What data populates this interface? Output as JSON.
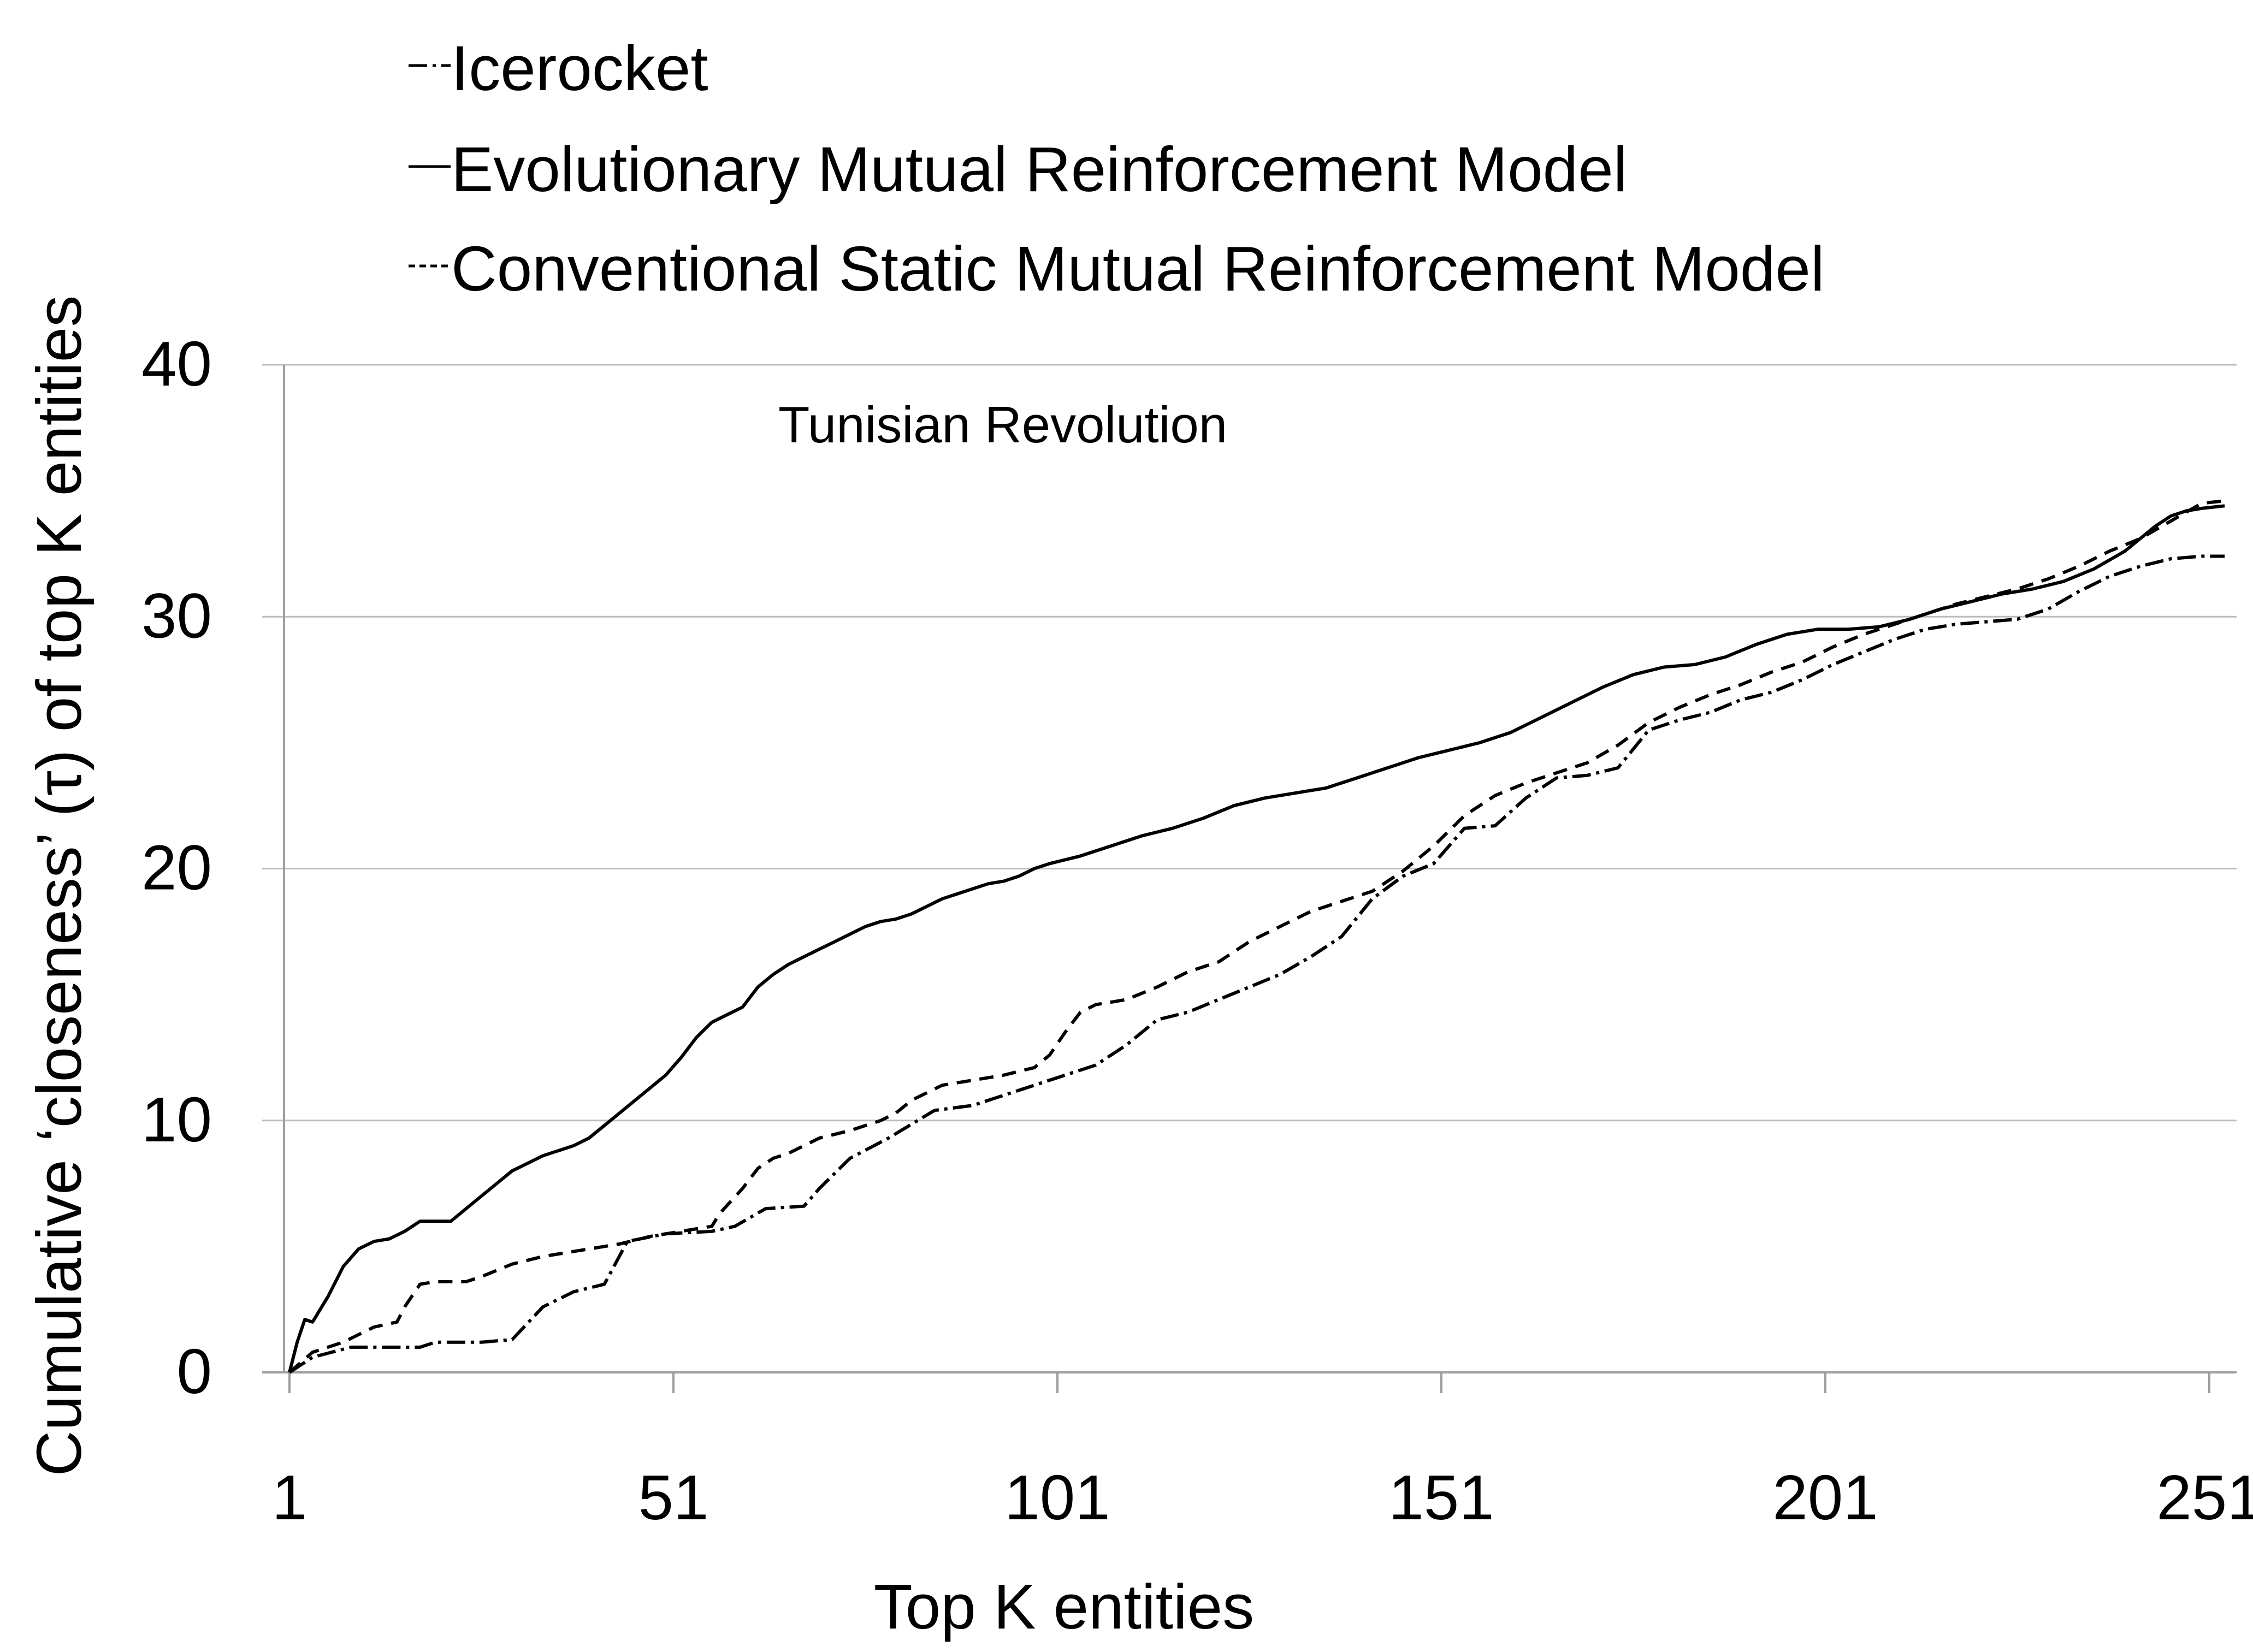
{
  "chart_data": {
    "type": "line",
    "title": "Tunisian Revolution",
    "xlabel": "Top K entities",
    "ylabel": "Cumulative ‘closeness’ (τ) of top K entities",
    "xlim": [
      1,
      253
    ],
    "ylim": [
      0,
      40
    ],
    "x_ticks": [
      "1",
      "51",
      "101",
      "151",
      "201",
      "251"
    ],
    "y_ticks": [
      "0",
      "10",
      "20",
      "30",
      "40"
    ],
    "grid": "horizontal",
    "legend_position": "top",
    "series": [
      {
        "name": "Icerocket",
        "style": "dash-dot",
        "x": [
          1,
          4,
          9,
          14,
          18,
          20,
          26,
          30,
          34,
          38,
          42,
          45,
          50,
          56,
          59,
          63,
          68,
          70,
          74,
          79,
          85,
          90,
          96,
          102,
          106,
          110,
          114,
          118,
          122,
          126,
          130,
          134,
          138,
          142,
          146,
          150,
          154,
          158,
          162,
          166,
          170,
          174,
          178,
          182,
          186,
          190,
          194,
          198,
          202,
          206,
          210,
          214,
          218,
          222,
          226,
          230,
          234,
          238,
          242,
          246,
          250,
          253
        ],
        "values": [
          0,
          0.6,
          1.0,
          1.0,
          1.0,
          1.2,
          1.2,
          1.3,
          2.6,
          3.2,
          3.5,
          5.2,
          5.5,
          5.6,
          5.8,
          6.5,
          6.6,
          7.3,
          8.5,
          9.3,
          10.4,
          10.6,
          11.2,
          11.8,
          12.2,
          13.0,
          14.0,
          14.3,
          14.8,
          15.3,
          15.8,
          16.5,
          17.3,
          18.8,
          19.7,
          20.2,
          21.6,
          21.7,
          22.8,
          23.6,
          23.7,
          24.0,
          25.5,
          25.9,
          26.2,
          26.7,
          27.0,
          27.5,
          28.1,
          28.6,
          29.1,
          29.5,
          29.7,
          29.8,
          29.9,
          30.3,
          31.0,
          31.6,
          32.0,
          32.3,
          32.4,
          32.4
        ]
      },
      {
        "name": "Evolutionary Mutual Reinforcement Model",
        "style": "solid",
        "x": [
          1,
          2,
          3,
          4,
          6,
          8,
          10,
          12,
          14,
          16,
          18,
          20,
          22,
          24,
          26,
          28,
          30,
          32,
          34,
          36,
          38,
          40,
          42,
          44,
          46,
          48,
          50,
          52,
          54,
          56,
          58,
          60,
          62,
          64,
          66,
          68,
          70,
          72,
          74,
          76,
          78,
          80,
          82,
          84,
          86,
          88,
          90,
          92,
          94,
          96,
          98,
          100,
          104,
          108,
          112,
          116,
          120,
          124,
          128,
          132,
          136,
          140,
          144,
          148,
          152,
          156,
          160,
          164,
          168,
          172,
          176,
          180,
          184,
          188,
          192,
          196,
          200,
          204,
          208,
          212,
          216,
          220,
          224,
          228,
          232,
          236,
          240,
          244,
          246,
          248,
          250,
          253
        ],
        "values": [
          0,
          1.2,
          2.1,
          2.0,
          3.0,
          4.2,
          4.9,
          5.2,
          5.3,
          5.6,
          6.0,
          6.0,
          6.0,
          6.5,
          7.0,
          7.5,
          8.0,
          8.3,
          8.6,
          8.8,
          9.0,
          9.3,
          9.8,
          10.3,
          10.8,
          11.3,
          11.8,
          12.5,
          13.3,
          13.9,
          14.2,
          14.5,
          15.3,
          15.8,
          16.2,
          16.5,
          16.8,
          17.1,
          17.4,
          17.7,
          17.9,
          18.0,
          18.2,
          18.5,
          18.8,
          19.0,
          19.2,
          19.4,
          19.5,
          19.7,
          20.0,
          20.2,
          20.5,
          20.9,
          21.3,
          21.6,
          22.0,
          22.5,
          22.8,
          23.0,
          23.2,
          23.6,
          24.0,
          24.4,
          24.7,
          25.0,
          25.4,
          26.0,
          26.6,
          27.2,
          27.7,
          28.0,
          28.1,
          28.4,
          28.9,
          29.3,
          29.5,
          29.5,
          29.6,
          29.9,
          30.3,
          30.6,
          30.9,
          31.1,
          31.4,
          31.9,
          32.6,
          33.6,
          34.0,
          34.2,
          34.3,
          34.4
        ]
      },
      {
        "name": "Conventional Static Mutual Reinforcement Model",
        "style": "dashed",
        "x": [
          1,
          4,
          8,
          12,
          15,
          16,
          18,
          20,
          24,
          26,
          30,
          34,
          38,
          40,
          44,
          48,
          52,
          56,
          57,
          60,
          62,
          64,
          66,
          68,
          70,
          74,
          78,
          80,
          82,
          86,
          90,
          94,
          98,
          100,
          102,
          104,
          106,
          108,
          110,
          114,
          118,
          122,
          126,
          130,
          134,
          138,
          142,
          146,
          150,
          154,
          158,
          162,
          166,
          170,
          174,
          178,
          182,
          186,
          190,
          194,
          198,
          202,
          206,
          210,
          214,
          218,
          222,
          226,
          230,
          234,
          238,
          242,
          246,
          250,
          253
        ],
        "values": [
          0,
          0.8,
          1.2,
          1.8,
          2.0,
          2.6,
          3.5,
          3.6,
          3.6,
          3.8,
          4.3,
          4.6,
          4.8,
          4.9,
          5.1,
          5.4,
          5.6,
          5.8,
          6.3,
          7.3,
          8.1,
          8.5,
          8.7,
          9.0,
          9.3,
          9.6,
          10.0,
          10.3,
          10.8,
          11.4,
          11.6,
          11.8,
          12.1,
          12.6,
          13.5,
          14.3,
          14.6,
          14.7,
          14.8,
          15.3,
          15.9,
          16.3,
          17.1,
          17.7,
          18.3,
          18.7,
          19.1,
          19.9,
          20.9,
          22.1,
          22.9,
          23.4,
          23.8,
          24.2,
          24.9,
          25.8,
          26.4,
          26.9,
          27.3,
          27.8,
          28.2,
          28.8,
          29.3,
          29.7,
          30.1,
          30.5,
          30.8,
          31.1,
          31.5,
          32.0,
          32.6,
          33.1,
          33.8,
          34.5,
          34.6
        ]
      }
    ]
  }
}
